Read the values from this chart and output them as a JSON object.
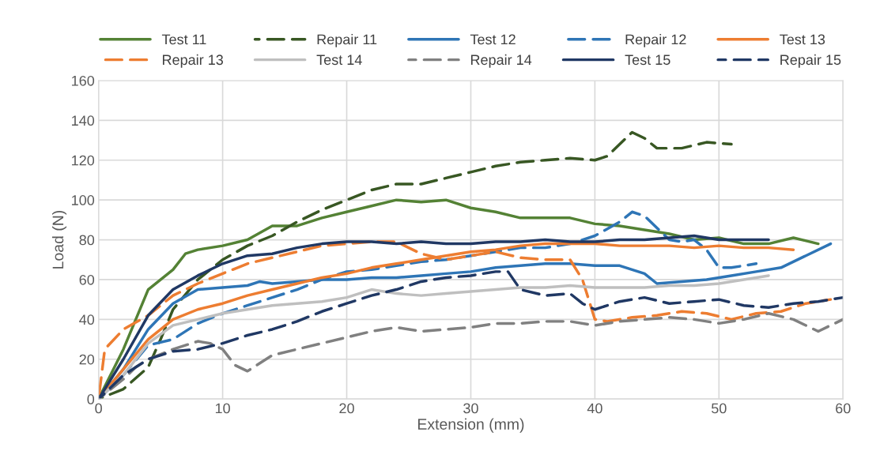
{
  "chart_data": {
    "type": "line",
    "xlabel": "Extension (mm)",
    "ylabel": "Load (N)",
    "xlim": [
      0,
      60
    ],
    "xticks": [
      0,
      10,
      20,
      30,
      40,
      50,
      60
    ],
    "ylim": [
      0,
      160
    ],
    "yticks": [
      0,
      20,
      40,
      60,
      80,
      100,
      120,
      140,
      160
    ],
    "grid": true,
    "legend": "top",
    "marker": "none",
    "series": [
      {
        "name": "Test 11",
        "color": "#548235",
        "line_style": "solid",
        "x": [
          0,
          2,
          4,
          6,
          7,
          8,
          10,
          12,
          14,
          16,
          18,
          20,
          22,
          24,
          26,
          28,
          30,
          32,
          34,
          36,
          38,
          40,
          42,
          44,
          46,
          48,
          50,
          52,
          54,
          56,
          58
        ],
        "values": [
          0,
          25,
          55,
          65,
          73,
          75,
          77,
          80,
          87,
          87,
          91,
          94,
          97,
          100,
          99,
          100,
          96,
          94,
          91,
          91,
          91,
          88,
          87,
          85,
          83,
          80,
          81,
          78,
          78,
          81,
          78
        ]
      },
      {
        "name": "Repair 11",
        "color": "#385723",
        "line_style": "dashed",
        "x": [
          0,
          2,
          4,
          5,
          6,
          8,
          10,
          12,
          14,
          16,
          18,
          20,
          22,
          24,
          26,
          28,
          30,
          32,
          34,
          36,
          38,
          40,
          41,
          42,
          43,
          44,
          45,
          47,
          49,
          51
        ],
        "values": [
          0,
          5,
          16,
          30,
          45,
          60,
          70,
          77,
          82,
          89,
          95,
          100,
          105,
          108,
          108,
          111,
          114,
          117,
          119,
          120,
          121,
          120,
          122,
          128,
          134,
          131,
          126,
          126,
          129,
          128
        ]
      },
      {
        "name": "Test 12",
        "color": "#2e75b6",
        "line_style": "solid",
        "x": [
          0,
          2,
          4,
          6,
          8,
          10,
          12,
          13,
          14,
          16,
          18,
          20,
          22,
          24,
          26,
          28,
          30,
          32,
          34,
          36,
          38,
          40,
          42,
          44,
          45,
          47,
          49,
          51,
          53,
          55,
          57,
          59
        ],
        "values": [
          0,
          15,
          35,
          48,
          55,
          56,
          57,
          59,
          58,
          59,
          60,
          60,
          61,
          61,
          62,
          63,
          64,
          66,
          67,
          68,
          68,
          67,
          67,
          63,
          58,
          59,
          60,
          62,
          64,
          66,
          72,
          78
        ]
      },
      {
        "name": "Repair 12",
        "color": "#2e75b6",
        "line_style": "dashed",
        "x": [
          0,
          2,
          4,
          6,
          8,
          10,
          12,
          14,
          16,
          18,
          20,
          22,
          24,
          26,
          28,
          30,
          32,
          34,
          36,
          38,
          40,
          42,
          43,
          44,
          45,
          46,
          47,
          48,
          49,
          50,
          51,
          53
        ],
        "values": [
          0,
          12,
          27,
          30,
          38,
          43,
          47,
          51,
          55,
          60,
          64,
          65,
          67,
          69,
          70,
          72,
          74,
          76,
          76,
          78,
          82,
          89,
          94,
          92,
          86,
          80,
          79,
          80,
          75,
          66,
          66,
          68
        ]
      },
      {
        "name": "Test 13",
        "color": "#ed7d31",
        "line_style": "solid",
        "x": [
          0,
          2,
          4,
          6,
          8,
          10,
          12,
          14,
          16,
          18,
          20,
          22,
          24,
          26,
          28,
          30,
          32,
          34,
          36,
          38,
          40,
          42,
          44,
          46,
          48,
          50,
          52,
          54,
          56
        ],
        "values": [
          0,
          15,
          30,
          40,
          45,
          48,
          52,
          55,
          58,
          61,
          63,
          66,
          68,
          70,
          72,
          74,
          75,
          77,
          78,
          78,
          78,
          77,
          77,
          77,
          76,
          77,
          76,
          76,
          75
        ]
      },
      {
        "name": "Repair 13",
        "color": "#ed7d31",
        "line_style": "dashed",
        "x": [
          0,
          0.5,
          2,
          4,
          6,
          8,
          10,
          12,
          14,
          16,
          18,
          20,
          22,
          24,
          26,
          28,
          30,
          32,
          34,
          36,
          38,
          39,
          40,
          41,
          43,
          45,
          47,
          49,
          51,
          53,
          55,
          57,
          59
        ],
        "values": [
          0,
          25,
          35,
          42,
          52,
          58,
          63,
          68,
          71,
          74,
          77,
          78,
          79,
          79,
          73,
          70,
          72,
          74,
          71,
          70,
          70,
          60,
          40,
          39,
          41,
          42,
          44,
          43,
          40,
          43,
          44,
          48,
          50
        ]
      },
      {
        "name": "Test 14",
        "color": "#bfbfbf",
        "line_style": "solid",
        "x": [
          0,
          2,
          4,
          6,
          8,
          10,
          12,
          14,
          16,
          18,
          20,
          22,
          24,
          26,
          28,
          30,
          32,
          34,
          36,
          38,
          40,
          42,
          44,
          46,
          48,
          50,
          52,
          54
        ],
        "values": [
          0,
          12,
          28,
          37,
          40,
          43,
          45,
          47,
          48,
          49,
          51,
          55,
          53,
          52,
          53,
          54,
          55,
          56,
          56,
          57,
          56,
          56,
          56,
          57,
          57,
          58,
          60,
          62
        ]
      },
      {
        "name": "Repair 14",
        "color": "#808080",
        "line_style": "dashed",
        "x": [
          0,
          2,
          3,
          4,
          6,
          8,
          9,
          10,
          11,
          12,
          13,
          14,
          16,
          18,
          20,
          22,
          24,
          26,
          28,
          30,
          32,
          34,
          36,
          38,
          40,
          42,
          44,
          46,
          48,
          50,
          52,
          54,
          56,
          58,
          60
        ],
        "values": [
          0,
          10,
          16,
          20,
          25,
          29,
          28,
          25,
          17,
          14,
          18,
          22,
          25,
          28,
          31,
          34,
          36,
          34,
          35,
          36,
          38,
          38,
          39,
          39,
          37,
          39,
          40,
          41,
          40,
          38,
          40,
          43,
          40,
          34,
          40
        ]
      },
      {
        "name": "Test 15",
        "color": "#203864",
        "line_style": "solid",
        "x": [
          0,
          2,
          4,
          6,
          8,
          10,
          12,
          14,
          16,
          18,
          20,
          22,
          24,
          26,
          28,
          30,
          32,
          34,
          36,
          38,
          40,
          42,
          44,
          46,
          48,
          50,
          52,
          54
        ],
        "values": [
          0,
          20,
          42,
          55,
          62,
          68,
          72,
          73,
          76,
          78,
          79,
          79,
          78,
          79,
          78,
          78,
          79,
          79,
          80,
          79,
          79,
          80,
          80,
          81,
          82,
          80,
          80,
          80
        ]
      },
      {
        "name": "Repair 15",
        "color": "#203864",
        "line_style": "dashed",
        "x": [
          0,
          2,
          4,
          6,
          8,
          10,
          12,
          14,
          16,
          18,
          20,
          22,
          24,
          26,
          28,
          30,
          32,
          33,
          34,
          36,
          38,
          39,
          40,
          42,
          44,
          46,
          48,
          50,
          52,
          54,
          56,
          58,
          60
        ],
        "values": [
          0,
          12,
          20,
          24,
          25,
          28,
          32,
          35,
          39,
          44,
          48,
          52,
          55,
          59,
          61,
          62,
          64,
          64,
          55,
          52,
          53,
          48,
          45,
          49,
          51,
          48,
          49,
          50,
          47,
          46,
          48,
          49,
          51
        ]
      }
    ]
  }
}
